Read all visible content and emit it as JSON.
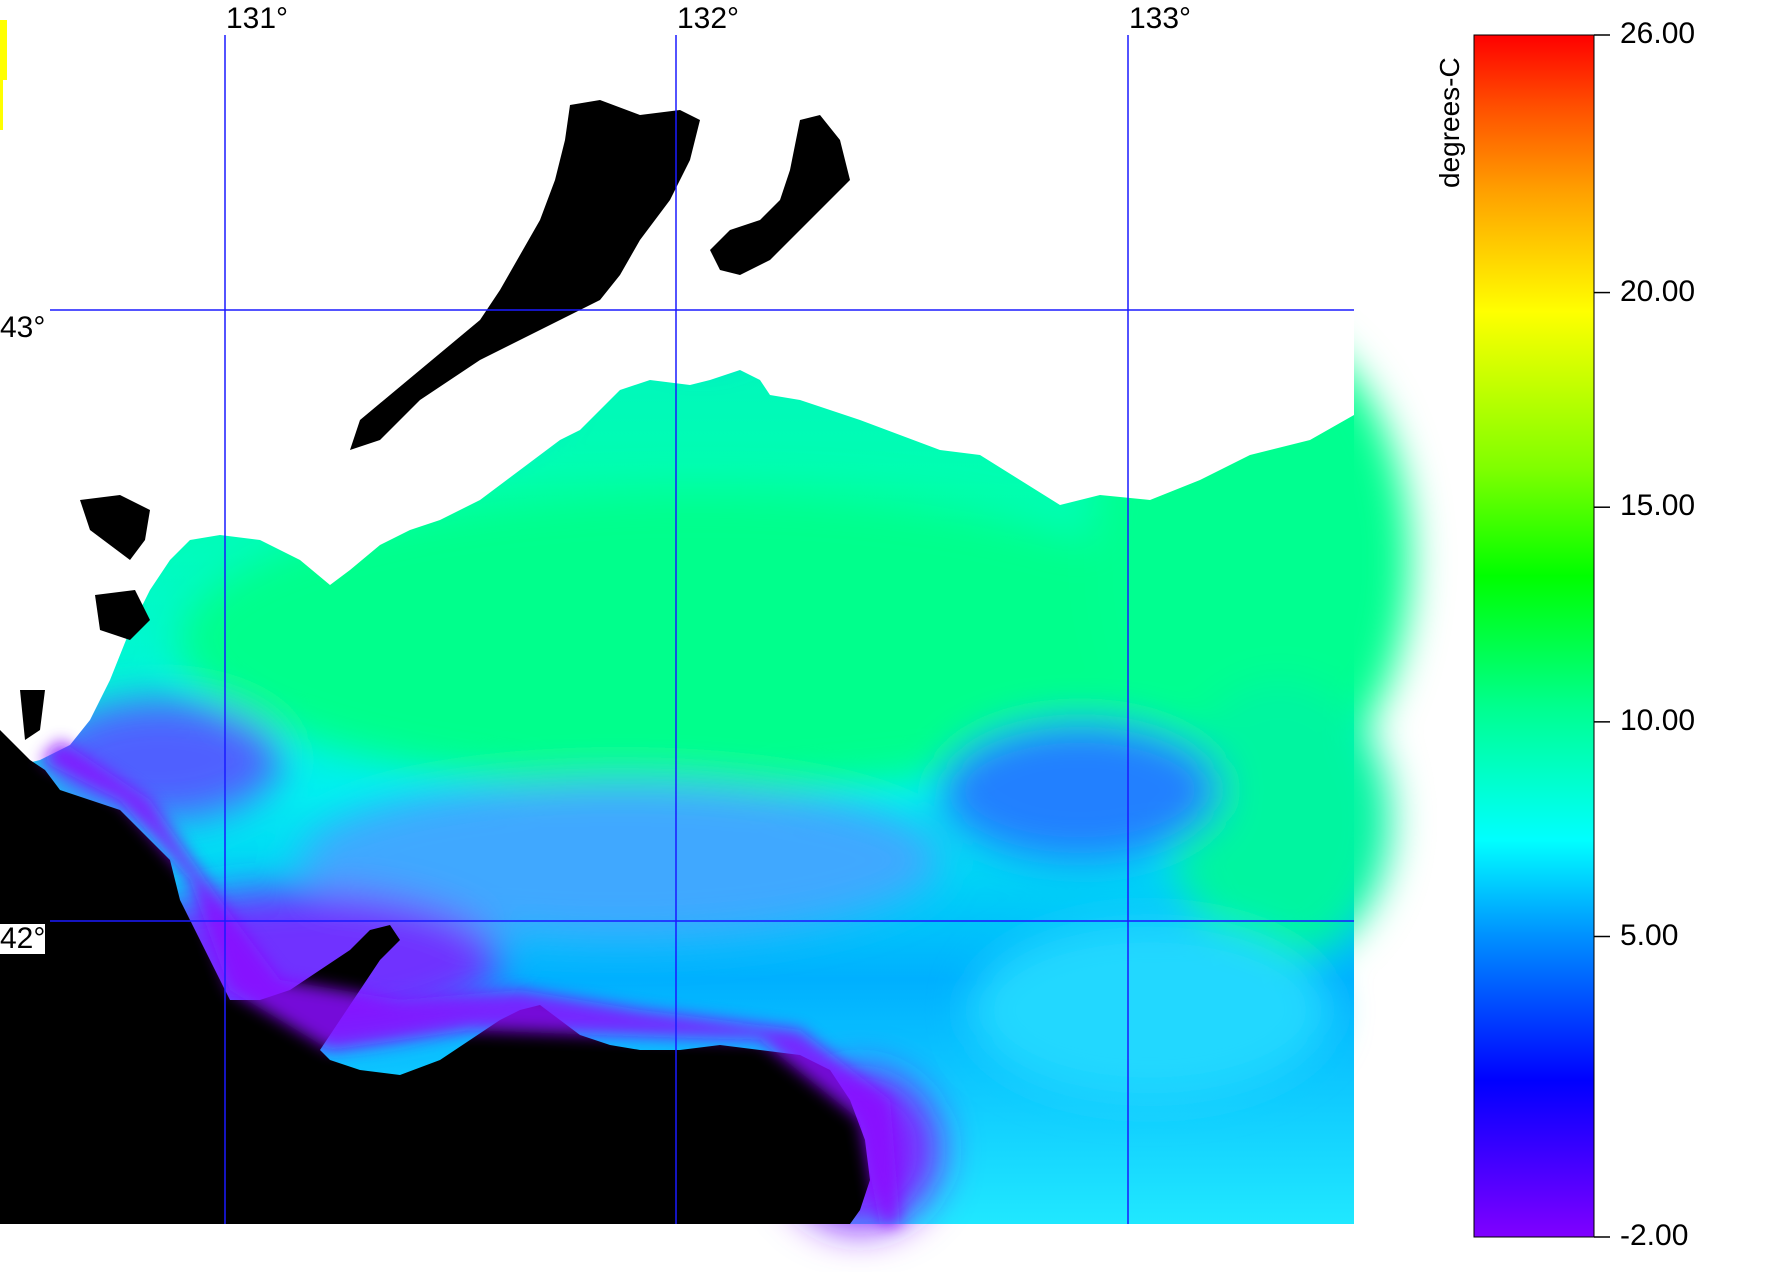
{
  "map": {
    "longitude_labels": [
      "131°",
      "132°",
      "133°"
    ],
    "latitude_labels": [
      "43°",
      "42°"
    ],
    "grid_color": "#1a1aff",
    "land_color": "#000000",
    "no_data_color": "#ffffff",
    "coastline_color": "#3030ff"
  },
  "colorbar": {
    "unit": "degrees-C",
    "min": -2.0,
    "max": 26.0,
    "tick_labels": [
      "26.00",
      "20.00",
      "15.00",
      "10.00",
      "5.00",
      "-2.00"
    ],
    "tick_values": [
      26,
      20,
      15,
      10,
      5,
      -2
    ],
    "colors": [
      "#8000ff",
      "#0000ff",
      "#00a0ff",
      "#00ffff",
      "#00ff80",
      "#00ff00",
      "#80ff00",
      "#ffff00",
      "#ffa000",
      "#ff4000",
      "#ff0000"
    ]
  }
}
